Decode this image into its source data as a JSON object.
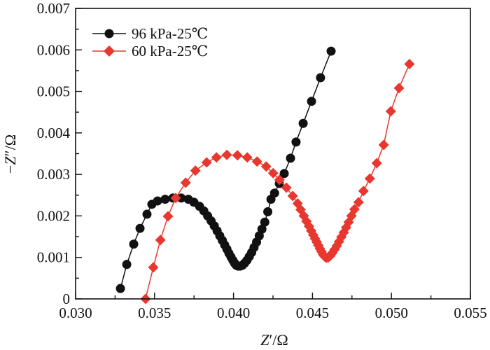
{
  "chart_data": {
    "type": "line",
    "title": "",
    "xlabel": "Z′/Ω",
    "ylabel": "−Z″/Ω",
    "xlabel_parts": {
      "var": "Z",
      "rest": "′/Ω"
    },
    "ylabel_parts": {
      "pre": "−",
      "var": "Z",
      "rest": "″/Ω"
    },
    "xlim": [
      0.03,
      0.055
    ],
    "ylim": [
      0,
      0.007
    ],
    "xticks": [
      0.03,
      0.035,
      0.04,
      0.045,
      0.05,
      0.055
    ],
    "xtick_labels": [
      "0.030",
      "0.035",
      "0.040",
      "0.045",
      "0.050",
      "0.055"
    ],
    "yticks": [
      0,
      0.001,
      0.002,
      0.003,
      0.004,
      0.005,
      0.006,
      0.007
    ],
    "ytick_labels": [
      "0",
      "0.001",
      "0.002",
      "0.003",
      "0.004",
      "0.005",
      "0.006",
      "0.007"
    ],
    "grid": false,
    "legend_position": "top-left",
    "series": [
      {
        "name": "96 kPa-25℃",
        "color": "#111111",
        "marker": "circle",
        "x": [
          0.03284,
          0.03324,
          0.03368,
          0.03408,
          0.03452,
          0.03483,
          0.03519,
          0.03567,
          0.03616,
          0.03669,
          0.03714,
          0.03749,
          0.03785,
          0.03812,
          0.03836,
          0.03858,
          0.03878,
          0.03896,
          0.03913,
          0.03929,
          0.03944,
          0.03958,
          0.03971,
          0.03984,
          0.03996,
          0.04007,
          0.04018,
          0.04029,
          0.04042,
          0.04056,
          0.0407,
          0.04085,
          0.041,
          0.04115,
          0.0413,
          0.04146,
          0.04163,
          0.0418,
          0.04198,
          0.04217,
          0.04237,
          0.0426,
          0.0429,
          0.04321,
          0.04361,
          0.04396,
          0.04441,
          0.04494,
          0.04551,
          0.04618
        ],
        "y": [
          0.00025,
          0.00083,
          0.00132,
          0.0017,
          0.00204,
          0.00228,
          0.00236,
          0.0024,
          0.00243,
          0.00243,
          0.0024,
          0.00233,
          0.00223,
          0.00212,
          0.002,
          0.00188,
          0.00176,
          0.00164,
          0.00152,
          0.00141,
          0.0013,
          0.0012,
          0.0011,
          0.00101,
          0.00093,
          0.00086,
          0.00081,
          0.00079,
          0.00079,
          0.00081,
          0.00086,
          0.00093,
          0.00102,
          0.00112,
          0.00124,
          0.00137,
          0.00152,
          0.00168,
          0.00185,
          0.0021,
          0.0024,
          0.00255,
          0.00278,
          0.00302,
          0.00339,
          0.00378,
          0.00423,
          0.00476,
          0.00533,
          0.00597
        ]
      },
      {
        "name": "60 kPa-25℃",
        "color": "#e8372f",
        "marker": "diamond",
        "x": [
          0.03443,
          0.03492,
          0.03537,
          0.03585,
          0.03634,
          0.03697,
          0.03759,
          0.0383,
          0.03892,
          0.03958,
          0.04025,
          0.04087,
          0.04149,
          0.04207,
          0.04251,
          0.04291,
          0.04335,
          0.04375,
          0.04406,
          0.04425,
          0.04445,
          0.04462,
          0.04478,
          0.04492,
          0.04505,
          0.04516,
          0.04527,
          0.04537,
          0.04547,
          0.04557,
          0.04567,
          0.04577,
          0.04588,
          0.046,
          0.04613,
          0.04626,
          0.0464,
          0.04654,
          0.04668,
          0.04683,
          0.04698,
          0.04713,
          0.04729,
          0.04747,
          0.04766,
          0.04792,
          0.04823,
          0.04863,
          0.04907,
          0.04951,
          0.04996,
          0.05048,
          0.05114
        ],
        "y": [
          0.0,
          0.00076,
          0.00142,
          0.00199,
          0.00243,
          0.0028,
          0.00309,
          0.00329,
          0.00341,
          0.00347,
          0.00346,
          0.00341,
          0.00331,
          0.00319,
          0.00303,
          0.00287,
          0.00268,
          0.00248,
          0.0023,
          0.00215,
          0.002,
          0.00187,
          0.00175,
          0.00164,
          0.00154,
          0.00145,
          0.00137,
          0.00129,
          0.00121,
          0.00114,
          0.00107,
          0.00102,
          0.00099,
          0.001,
          0.00104,
          0.00111,
          0.00119,
          0.00128,
          0.00138,
          0.00149,
          0.0016,
          0.00172,
          0.00185,
          0.002,
          0.00216,
          0.00233,
          0.0026,
          0.0029,
          0.00327,
          0.00371,
          0.00452,
          0.00508,
          0.00566
        ]
      }
    ]
  }
}
